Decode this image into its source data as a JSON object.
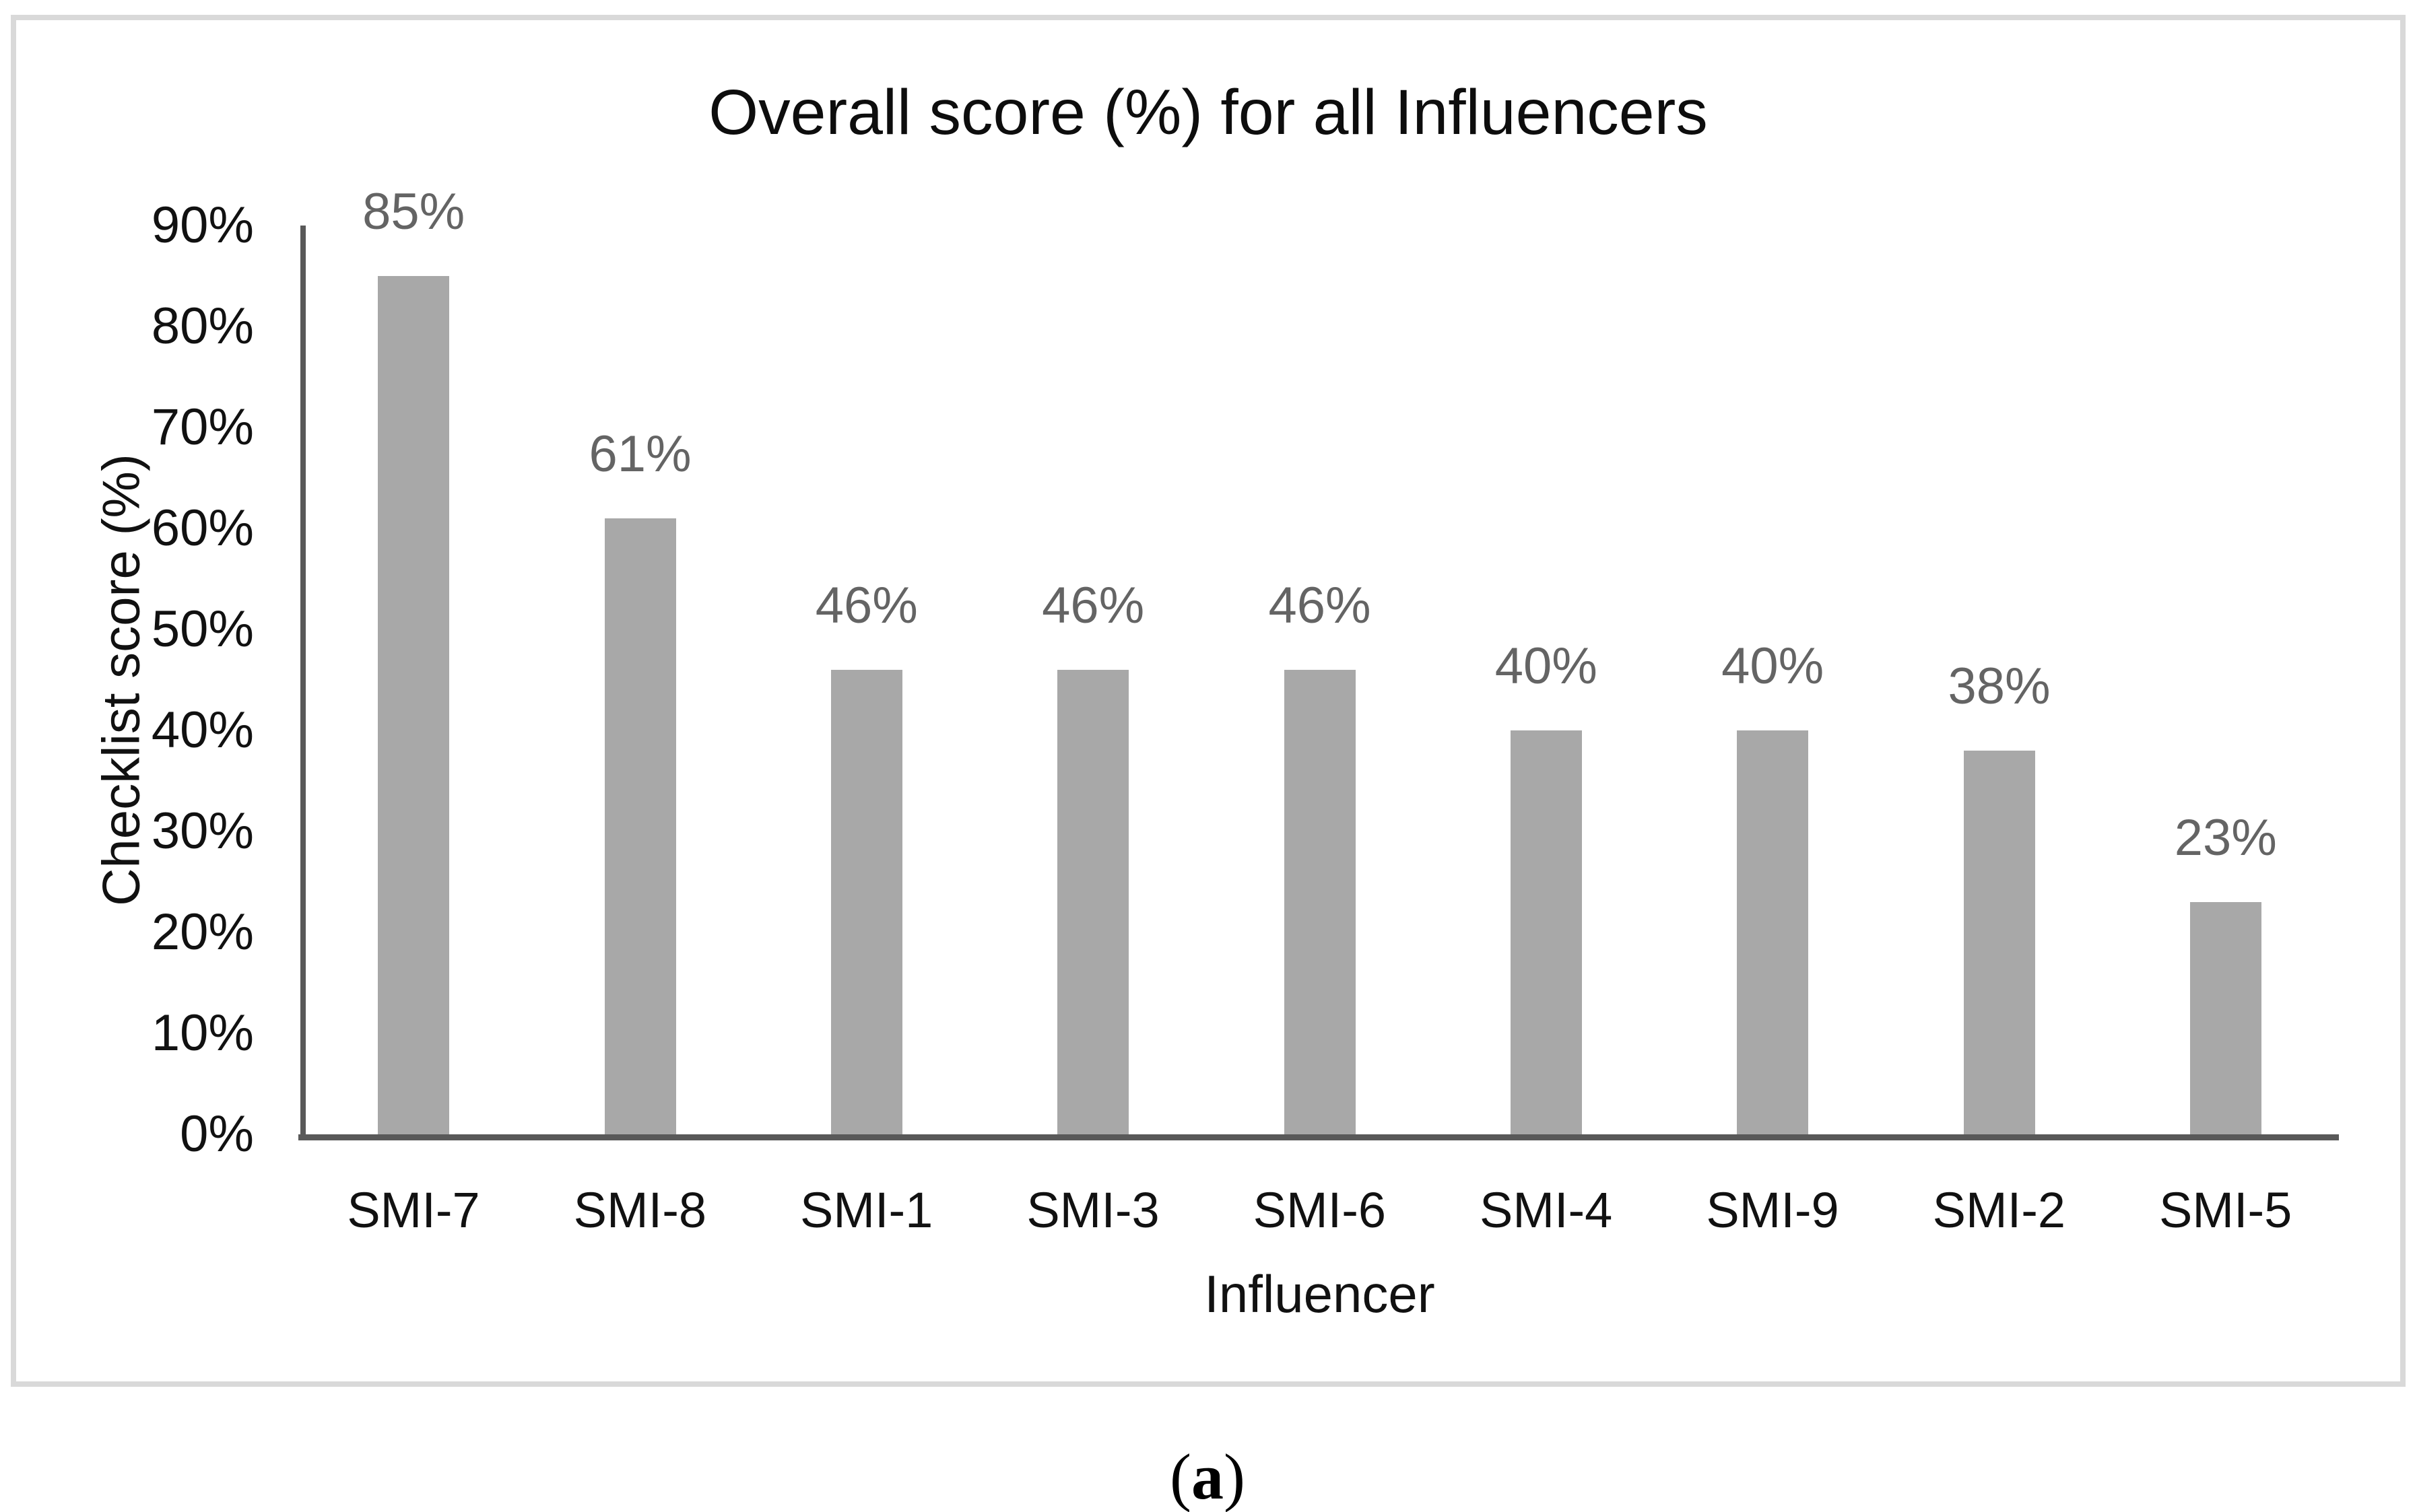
{
  "figure": {
    "caption": {
      "open": "(",
      "letter": "a",
      "close": ")"
    }
  },
  "chart_data": {
    "type": "bar",
    "title": "Overall score (%) for all Influencers",
    "xlabel": "Influencer",
    "ylabel": "Checklist score (%)",
    "categories": [
      "SMI-7",
      "SMI-8",
      "SMI-1",
      "SMI-3",
      "SMI-6",
      "SMI-4",
      "SMI-9",
      "SMI-2",
      "SMI-5"
    ],
    "values": [
      85,
      61,
      46,
      46,
      46,
      40,
      40,
      38,
      23
    ],
    "value_labels": [
      "85%",
      "61%",
      "46%",
      "46%",
      "46%",
      "40%",
      "40%",
      "38%",
      "23%"
    ],
    "ylim": [
      0,
      90
    ],
    "ytick_step": 10,
    "ytick_labels": [
      "0%",
      "10%",
      "20%",
      "30%",
      "40%",
      "50%",
      "60%",
      "70%",
      "80%",
      "90%"
    ],
    "grid": false,
    "legend": false,
    "bar_color": "#a8a8a8",
    "axis_color": "#595959",
    "data_label_color": "#646464",
    "border_color": "#d9d9d9"
  }
}
